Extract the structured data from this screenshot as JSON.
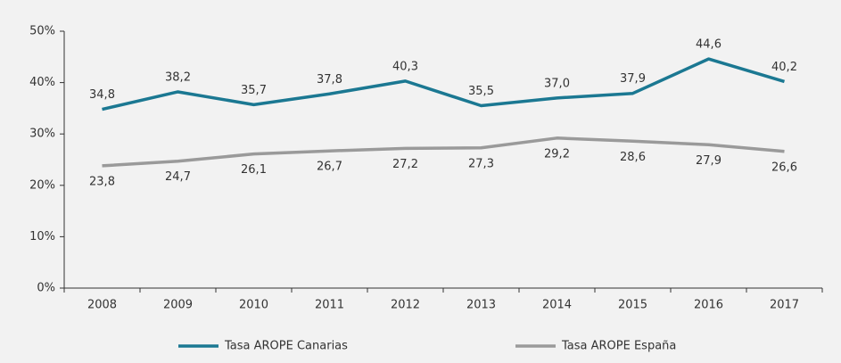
{
  "chart_data": {
    "type": "line",
    "categories": [
      "2008",
      "2009",
      "2010",
      "2011",
      "2012",
      "2013",
      "2014",
      "2015",
      "2016",
      "2017"
    ],
    "series": [
      {
        "name": "Tasa AROPE Canarias",
        "color": "#1b7892",
        "values": [
          34.8,
          38.2,
          35.7,
          37.8,
          40.3,
          35.5,
          37.0,
          37.9,
          44.6,
          40.2
        ],
        "value_labels": [
          "34,8",
          "38,2",
          "35,7",
          "37,8",
          "40,3",
          "35,5",
          "37,0",
          "37,9",
          "44,6",
          "40,2"
        ]
      },
      {
        "name": "Tasa AROPE España",
        "color": "#9a9a9a",
        "values": [
          23.8,
          24.7,
          26.1,
          26.7,
          27.2,
          27.3,
          29.2,
          28.6,
          27.9,
          26.6
        ],
        "value_labels": [
          "23,8",
          "24,7",
          "26,1",
          "26,7",
          "27,2",
          "27,3",
          "29,2",
          "28,6",
          "27,9",
          "26,6"
        ]
      }
    ],
    "ylim": [
      0,
      50
    ],
    "yticks": [
      {
        "value": 0,
        "label": "0%"
      },
      {
        "value": 10,
        "label": "10%"
      },
      {
        "value": 20,
        "label": "20%"
      },
      {
        "value": 30,
        "label": "30%"
      },
      {
        "value": 40,
        "label": "40%"
      },
      {
        "value": 50,
        "label": "50%"
      }
    ],
    "legend": "bottom"
  }
}
